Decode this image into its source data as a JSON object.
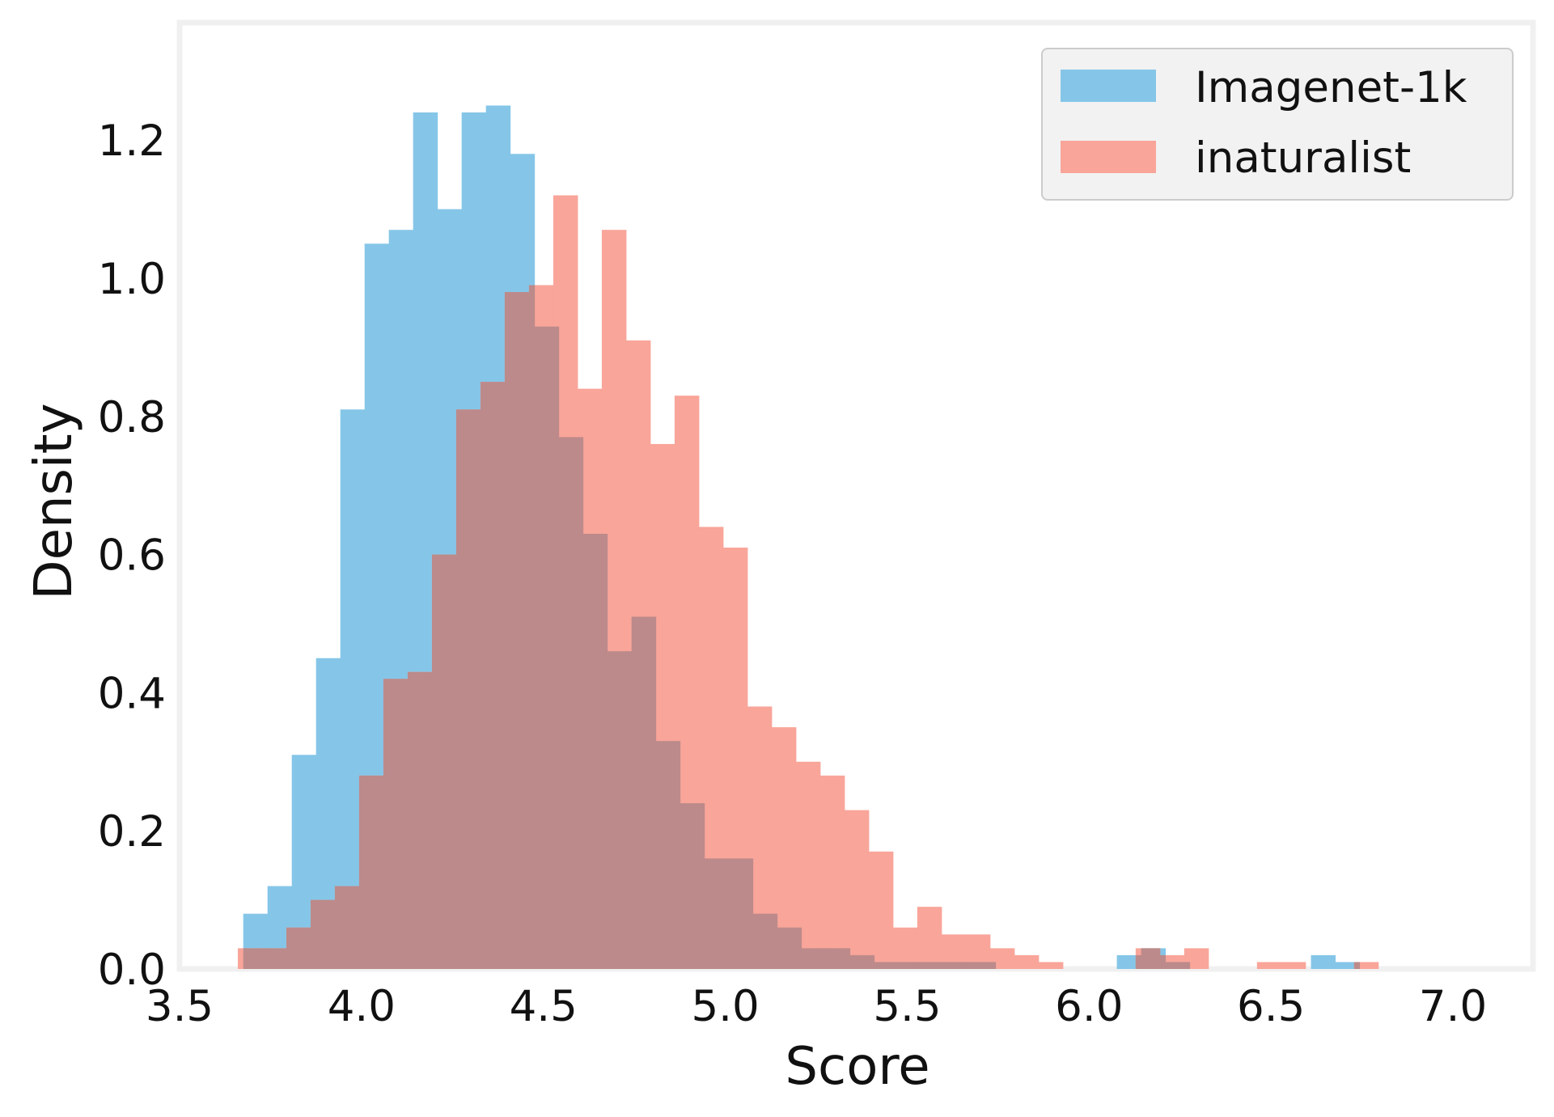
{
  "chart_data": {
    "type": "histogram",
    "xlabel": "Score",
    "ylabel": "Density",
    "xlim": [
      3.5,
      7.22
    ],
    "ylim": [
      0,
      1.37
    ],
    "x_ticks": [
      "3.5",
      "4.0",
      "4.5",
      "5.0",
      "5.5",
      "6.0",
      "6.5",
      "7.0"
    ],
    "y_ticks": [
      "0.0",
      "0.2",
      "0.4",
      "0.6",
      "0.8",
      "1.0",
      "1.2"
    ],
    "grid": false,
    "legend_position": "top-right",
    "overlap_color": "#bc8a8a",
    "series": [
      {
        "name": "Imagenet-1k",
        "color": "#85c6e8",
        "bin_start": 3.675,
        "bin_width": 0.0667,
        "values": [
          0.08,
          0.12,
          0.31,
          0.45,
          0.81,
          1.05,
          1.07,
          1.24,
          1.1,
          1.24,
          1.25,
          1.18,
          0.93,
          0.77,
          0.63,
          0.46,
          0.51,
          0.33,
          0.24,
          0.16,
          0.16,
          0.08,
          0.06,
          0.03,
          0.03,
          0.02,
          0.01,
          0.01,
          0.01,
          0.01,
          0.01,
          0.0,
          0.0,
          0.0,
          0.0,
          0.0,
          0.02,
          0.03,
          0.01,
          0.0,
          0.0,
          0.0,
          0.0,
          0.0,
          0.02,
          0.01,
          0.0,
          0.0,
          0.0,
          0.0,
          0.0,
          0.0,
          0.0,
          0.0,
          0.0,
          0.0,
          0.0,
          0.0,
          0.0,
          0.01,
          0.0,
          0.0,
          0.0,
          0.0,
          0.0,
          0.0,
          0.0,
          0.0,
          0.0,
          0.01,
          0.0,
          0.0,
          0.0,
          0.0,
          0.0,
          0.0,
          0.0,
          0.0,
          0.0,
          0.0
        ]
      },
      {
        "name": "inaturalist",
        "color": "#f9a59a",
        "bin_start": 3.66,
        "bin_width": 0.0667,
        "values": [
          0.03,
          0.03,
          0.06,
          0.1,
          0.12,
          0.28,
          0.42,
          0.43,
          0.6,
          0.81,
          0.85,
          0.98,
          0.99,
          1.12,
          0.84,
          1.07,
          0.91,
          0.76,
          0.83,
          0.64,
          0.61,
          0.38,
          0.35,
          0.3,
          0.28,
          0.23,
          0.17,
          0.06,
          0.09,
          0.05,
          0.05,
          0.03,
          0.02,
          0.01,
          0.0,
          0.0,
          0.0,
          0.03,
          0.02,
          0.03,
          0.0,
          0.0,
          0.01,
          0.01,
          0.0,
          0.0,
          0.01,
          0.0,
          0.0,
          0.0,
          0.0,
          0.0,
          0.0,
          0.0,
          0.0,
          0.0,
          0.0,
          0.0,
          0.0,
          0.0,
          0.0,
          0.0,
          0.0,
          0.0,
          0.0,
          0.0,
          0.0,
          0.0,
          0.0,
          0.0,
          0.0,
          0.0,
          0.0,
          0.0,
          0.0,
          0.0,
          0.0,
          0.0,
          0.0,
          0.0
        ]
      }
    ]
  }
}
